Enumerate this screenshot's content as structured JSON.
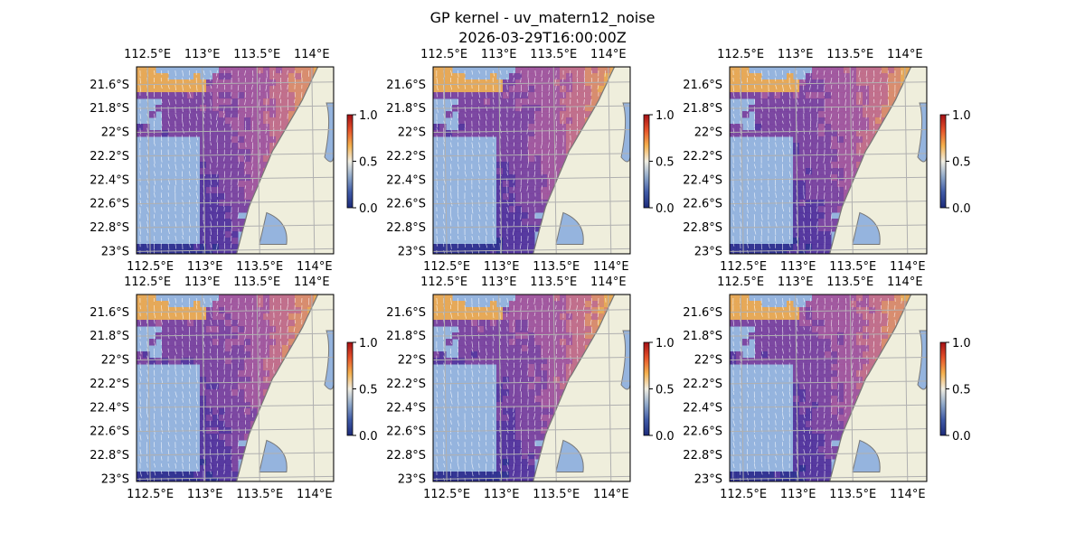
{
  "figure": {
    "title": "GP kernel - uv_matern12_noise",
    "subtitle": "2026-03-29T16:00:00Z"
  },
  "map": {
    "lon_ticks": [
      "112.5°E",
      "113°E",
      "113.5°E",
      "114°E"
    ],
    "lat_ticks": [
      "21.6°S",
      "21.8°S",
      "22°S",
      "22.2°S",
      "22.4°S",
      "22.6°S",
      "22.8°S",
      "23°S"
    ],
    "lon_values": [
      112.5,
      113.0,
      113.5,
      114.0
    ],
    "lat_values": [
      -21.6,
      -21.8,
      -22.0,
      -22.2,
      -22.4,
      -22.6,
      -22.8,
      -23.0
    ],
    "extent": {
      "lon_min": 112.4,
      "lon_max": 114.2,
      "lat_min": -23.02,
      "lat_max": -21.45
    },
    "colors": {
      "ocean": "#95b4de",
      "land": "#efeedc",
      "gridline": "#b0b0b0",
      "arrows": "#ffffff",
      "colormap": [
        "#1c2a7a",
        "#3f5aa6",
        "#8fa8c9",
        "#f2efe3",
        "#f5b14e",
        "#e6532a",
        "#a50f15"
      ]
    },
    "colorbar": {
      "ticks": [
        "1.0",
        "0.5",
        "0.0"
      ],
      "min": 0.0,
      "max": 1.0
    }
  },
  "panels": [
    {
      "id": "r1c1",
      "variant": 0
    },
    {
      "id": "r1c2",
      "variant": 1
    },
    {
      "id": "r1c3",
      "variant": 2
    },
    {
      "id": "r2c1",
      "variant": 3
    },
    {
      "id": "r2c2",
      "variant": 4
    },
    {
      "id": "r2c3",
      "variant": 5
    }
  ]
}
